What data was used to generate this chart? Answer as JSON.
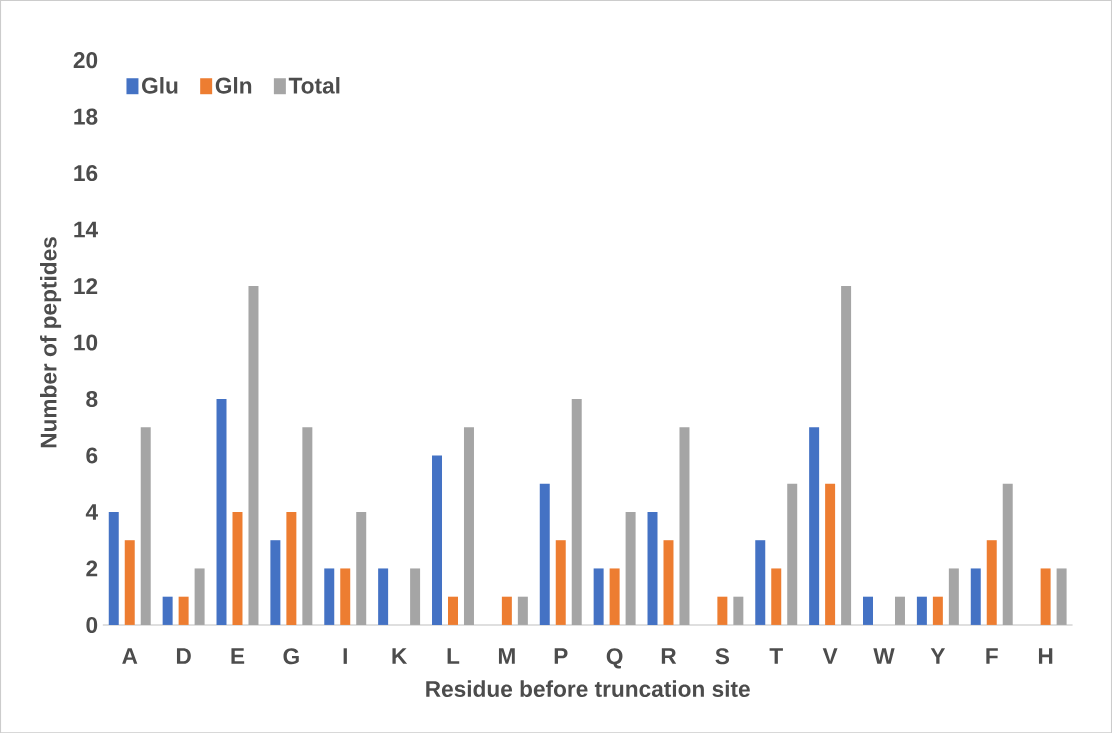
{
  "chart_data": {
    "type": "bar",
    "xlabel": "Residue before truncation site",
    "ylabel": "Number of peptides",
    "categories": [
      "A",
      "D",
      "E",
      "G",
      "I",
      "K",
      "L",
      "M",
      "P",
      "Q",
      "R",
      "S",
      "T",
      "V",
      "W",
      "Y",
      "F",
      "H"
    ],
    "series": [
      {
        "name": "Glu",
        "color": "#4472c4",
        "values": [
          4,
          1,
          8,
          3,
          2,
          2,
          6,
          0,
          5,
          2,
          4,
          0,
          3,
          7,
          1,
          1,
          2,
          0
        ]
      },
      {
        "name": "Gln",
        "color": "#ed7d31",
        "values": [
          3,
          1,
          4,
          4,
          2,
          0,
          1,
          1,
          3,
          2,
          3,
          1,
          2,
          5,
          0,
          1,
          3,
          2
        ]
      },
      {
        "name": "Total",
        "color": "#a5a5a5",
        "values": [
          7,
          2,
          12,
          7,
          4,
          2,
          7,
          1,
          8,
          4,
          7,
          1,
          5,
          12,
          1,
          2,
          5,
          2
        ]
      }
    ],
    "ylim": [
      0,
      20
    ],
    "yticks": [
      0,
      2,
      4,
      6,
      8,
      10,
      12,
      14,
      16,
      18,
      20
    ],
    "grid": false,
    "legend": "top left"
  }
}
